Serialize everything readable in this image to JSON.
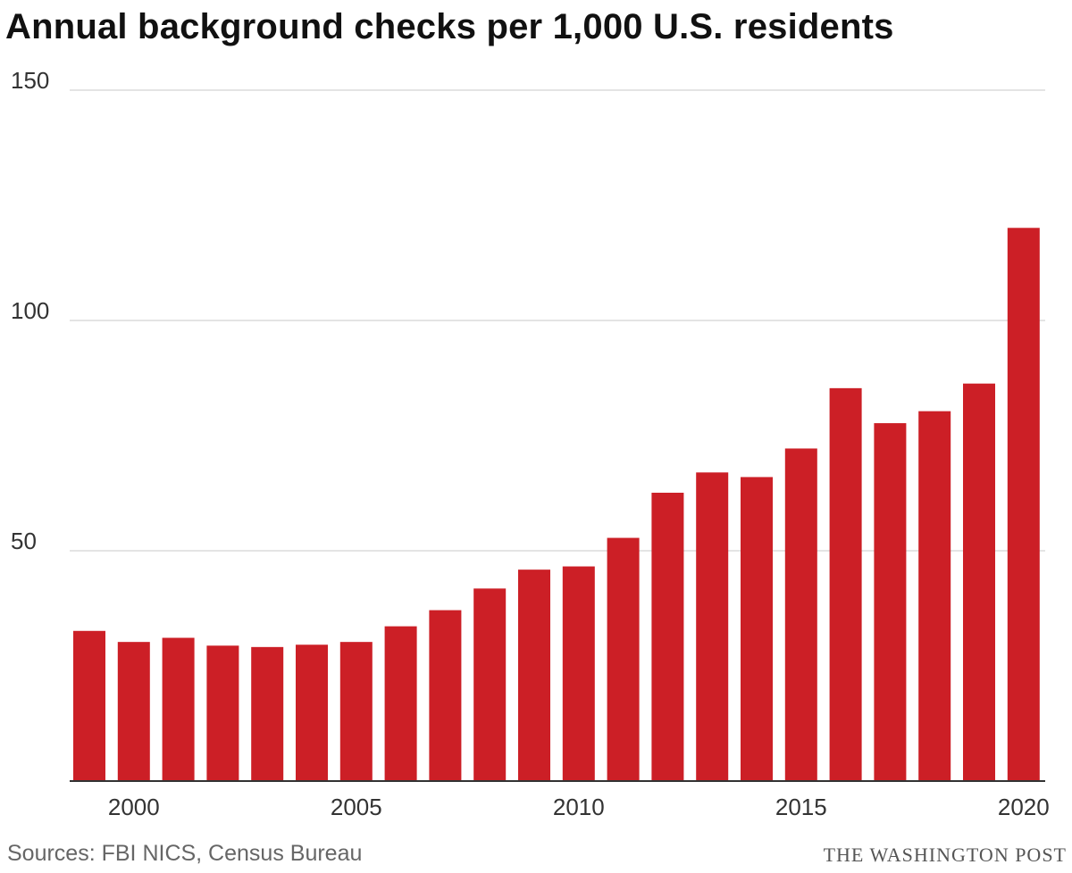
{
  "title": "Annual background checks per 1,000 U.S. residents",
  "source": "Sources: FBI NICS, Census Bureau",
  "credit": "THE WASHINGTON POST",
  "colors": {
    "bar": "#cc1f26",
    "grid": "#c8c8c8",
    "axis": "#333333",
    "text": "#333333"
  },
  "chart_data": {
    "type": "bar",
    "title": "Annual background checks per 1,000 U.S. residents",
    "xlabel": "",
    "ylabel": "",
    "x": [
      1999,
      2000,
      2001,
      2002,
      2003,
      2004,
      2005,
      2006,
      2007,
      2008,
      2009,
      2010,
      2011,
      2012,
      2013,
      2014,
      2015,
      2016,
      2017,
      2018,
      2019,
      2020
    ],
    "values": [
      32.6,
      30.2,
      31.1,
      29.4,
      29.1,
      29.6,
      30.2,
      33.6,
      37.1,
      41.8,
      45.9,
      46.6,
      52.8,
      62.6,
      67.0,
      66.0,
      72.2,
      85.3,
      77.7,
      80.3,
      86.3,
      120.1
    ],
    "ylim": [
      0,
      150
    ],
    "yticks": [
      50,
      100,
      150
    ],
    "xticks": [
      2000,
      2005,
      2010,
      2015,
      2020
    ],
    "grid": true
  }
}
